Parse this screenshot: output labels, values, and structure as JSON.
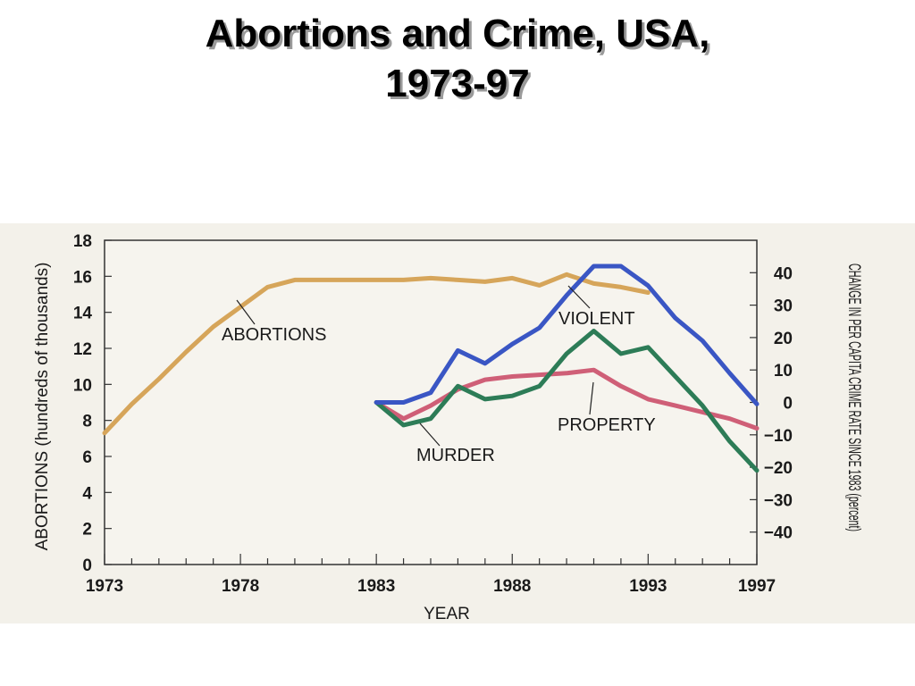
{
  "title": {
    "line1": "Abortions and Crime, USA,",
    "line2": "1973-97"
  },
  "chart_data": {
    "type": "line",
    "xlabel": "YEAR",
    "ylabel_left": "ABORTIONS (hundreds of thousands)",
    "ylabel_right": "CHANGE IN PER CAPITA CRIME RATE SINCE 1983 (percent)",
    "x_ticks": [
      1973,
      1978,
      1983,
      1988,
      1993,
      1997
    ],
    "xlim": [
      1973,
      1997
    ],
    "ylim_left": [
      0,
      18
    ],
    "left_ticks": [
      "0",
      "2",
      "4",
      "6",
      "8",
      "10",
      "12",
      "14",
      "16",
      "18"
    ],
    "ylim_right": [
      -50,
      50
    ],
    "right_ticks": [
      "40",
      "30",
      "20",
      "10",
      "0",
      "−10",
      "−20",
      "−30",
      "−40"
    ],
    "right_tick_values": [
      40,
      30,
      20,
      10,
      0,
      -10,
      -20,
      -30,
      -40
    ],
    "grid": false,
    "series": [
      {
        "name": "ABORTIONS",
        "axis": "left",
        "color": "#d6a55a",
        "x": [
          1973,
          1974,
          1975,
          1976,
          1977,
          1978,
          1979,
          1980,
          1981,
          1982,
          1983,
          1984,
          1985,
          1986,
          1987,
          1988,
          1989,
          1990,
          1991,
          1992,
          1993
        ],
        "y": [
          7.3,
          8.9,
          10.3,
          11.8,
          13.2,
          14.3,
          15.4,
          15.8,
          15.8,
          15.8,
          15.8,
          15.8,
          15.9,
          15.8,
          15.7,
          15.9,
          15.5,
          16.1,
          15.6,
          15.4,
          15.1
        ]
      },
      {
        "name": "VIOLENT",
        "axis": "right",
        "color": "#3a56c4",
        "x": [
          1983,
          1984,
          1985,
          1986,
          1987,
          1988,
          1989,
          1990,
          1991,
          1992,
          1993,
          1994,
          1995,
          1996,
          1997
        ],
        "y": [
          0,
          0,
          3,
          16,
          12,
          18,
          23,
          33,
          42,
          42,
          36,
          26,
          19,
          9,
          -0.5
        ]
      },
      {
        "name": "PROPERTY",
        "axis": "right",
        "color": "#cf5f77",
        "x": [
          1983,
          1984,
          1985,
          1986,
          1987,
          1988,
          1989,
          1990,
          1991,
          1992,
          1993,
          1994,
          1995,
          1996,
          1997
        ],
        "y": [
          0,
          -5,
          -1,
          4,
          7,
          8,
          8.5,
          9,
          10,
          5,
          1,
          -1,
          -3,
          -5,
          -8
        ]
      },
      {
        "name": "MURDER",
        "axis": "right",
        "color": "#2d7c57",
        "x": [
          1983,
          1984,
          1985,
          1986,
          1987,
          1988,
          1989,
          1990,
          1991,
          1992,
          1993,
          1994,
          1995,
          1996,
          1997
        ],
        "y": [
          0,
          -7,
          -5,
          5,
          1,
          2,
          5,
          15,
          22,
          15,
          17,
          8,
          -1,
          -12,
          -21
        ]
      }
    ]
  }
}
